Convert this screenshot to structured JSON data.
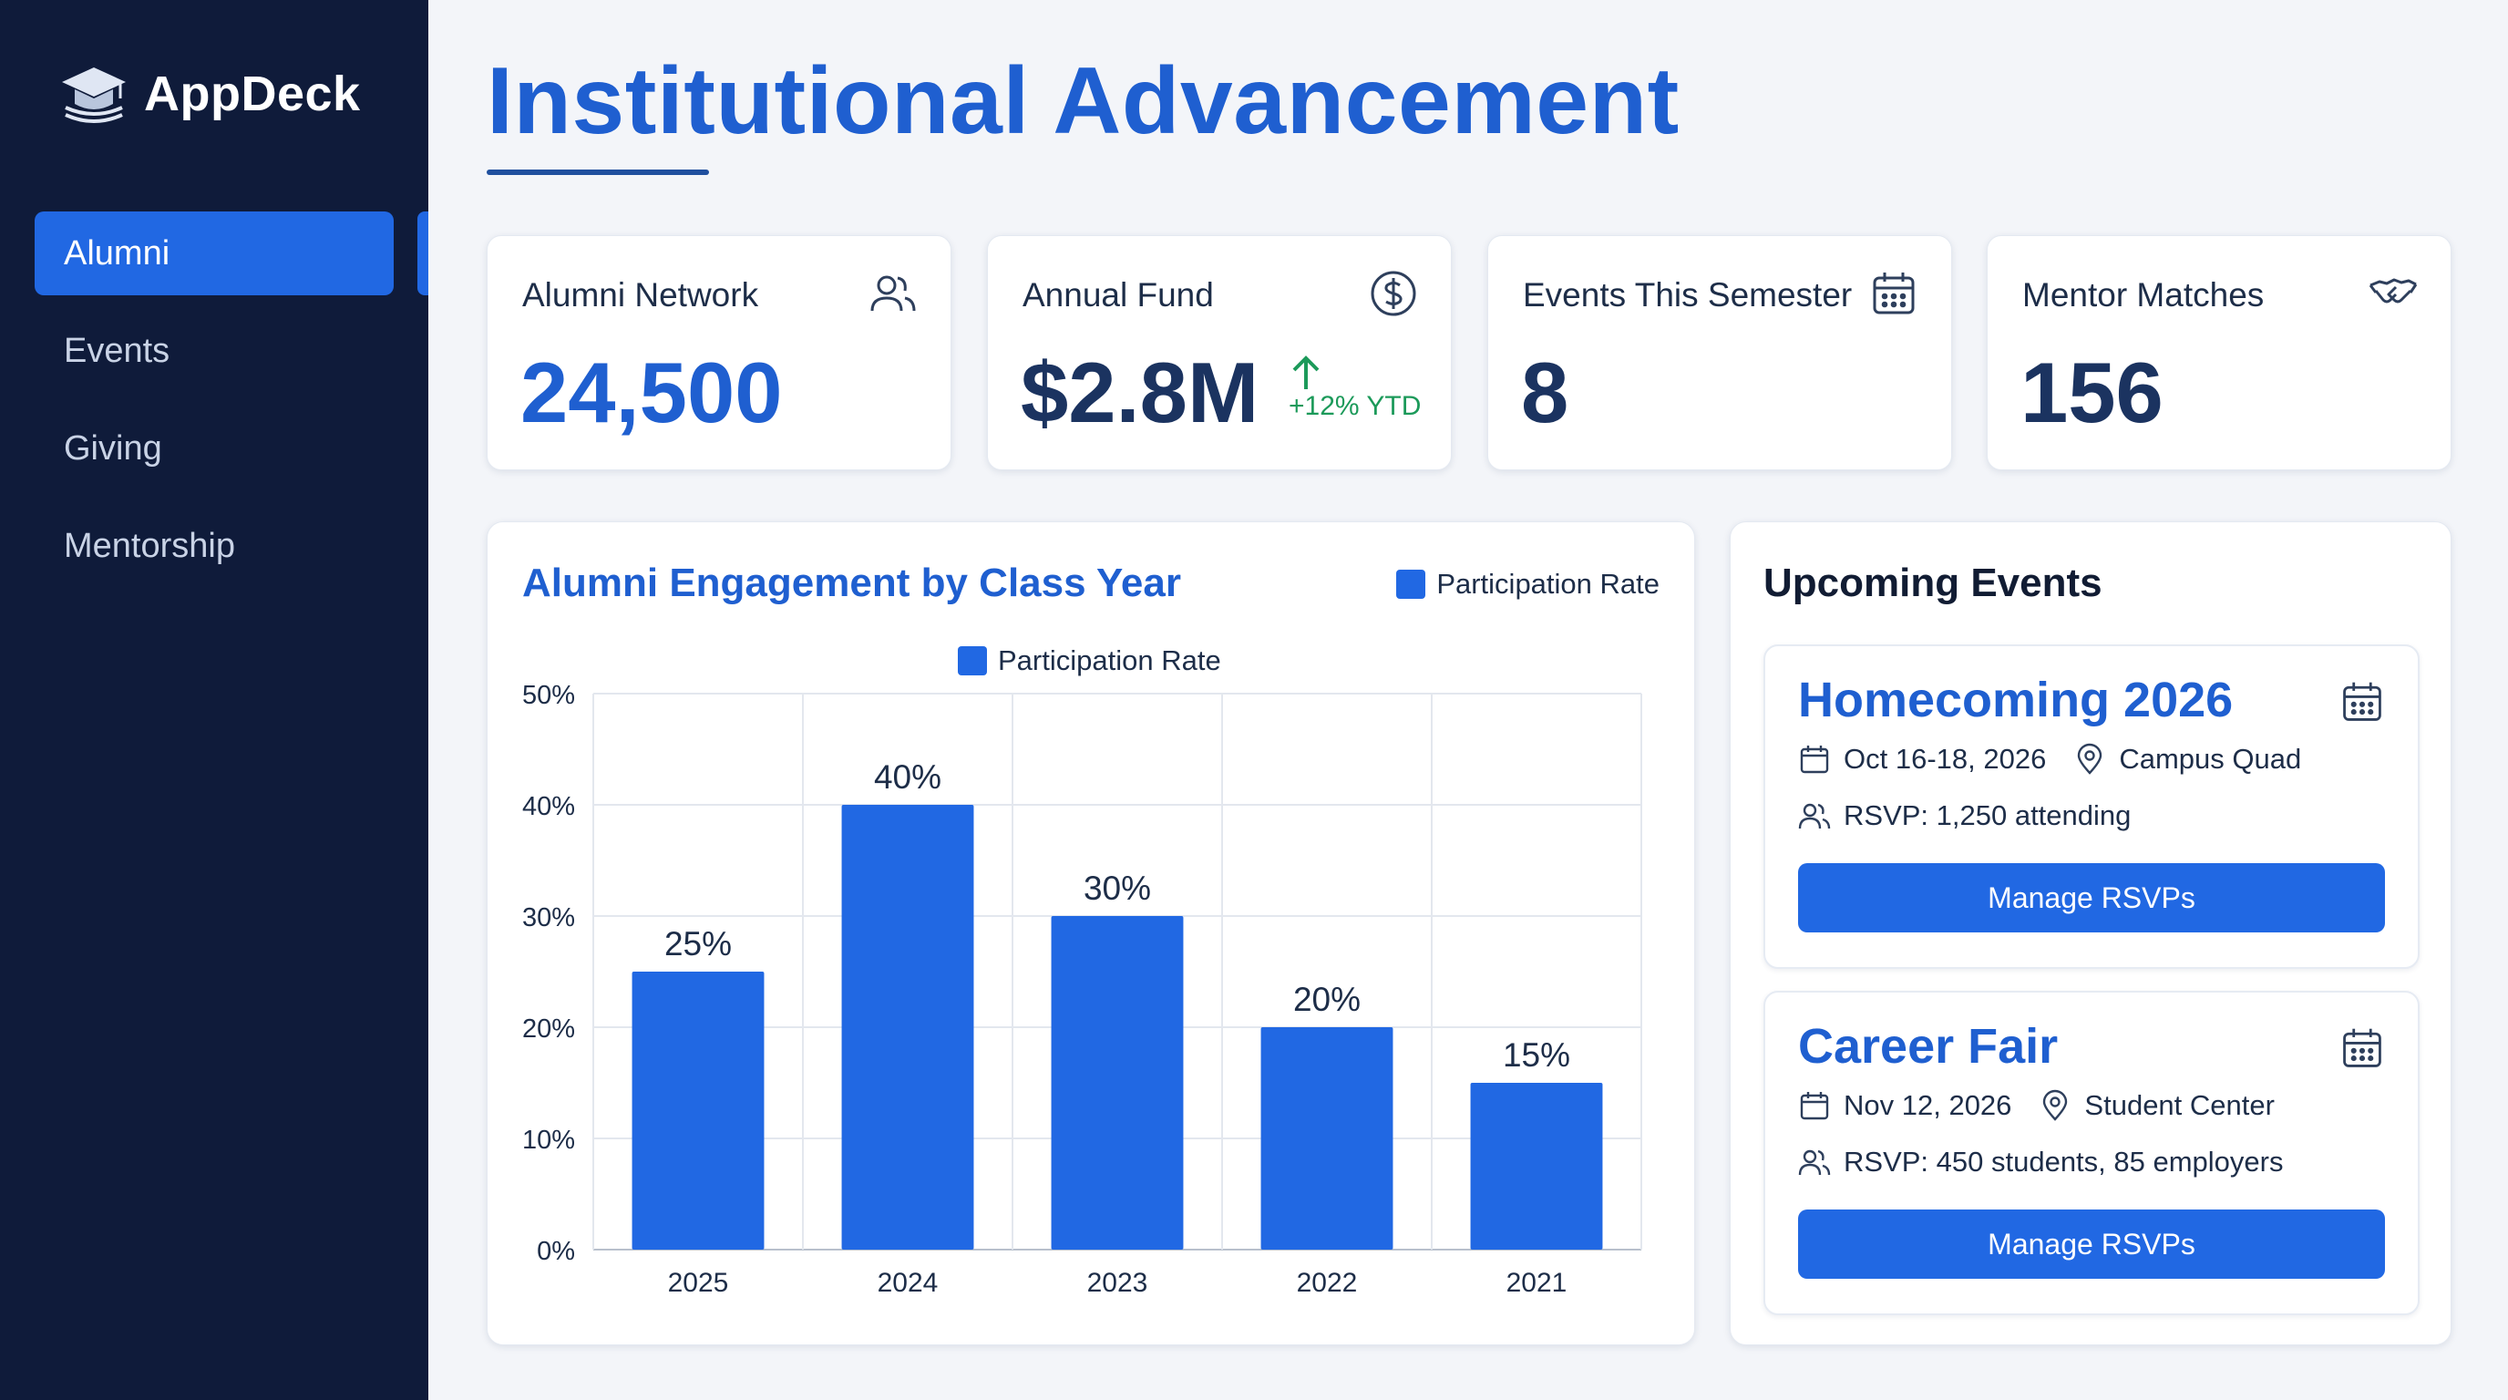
{
  "app": {
    "name": "AppDeck"
  },
  "sidebar": {
    "items": [
      {
        "label": "Alumni",
        "active": true
      },
      {
        "label": "Events",
        "active": false
      },
      {
        "label": "Giving",
        "active": false
      },
      {
        "label": "Mentorship",
        "active": false
      }
    ]
  },
  "header": {
    "title": "Institutional Advancement"
  },
  "kpis": [
    {
      "label": "Alumni Network",
      "value": "24,500",
      "icon": "users-icon"
    },
    {
      "label": "Annual Fund",
      "value": "$2.8M",
      "trend": "+12% YTD",
      "icon": "dollar-circle-icon"
    },
    {
      "label": "Events This Semester",
      "value": "8",
      "icon": "calendar-icon"
    },
    {
      "label": "Mentor Matches",
      "value": "156",
      "icon": "handshake-icon"
    }
  ],
  "chart": {
    "title": "Alumni Engagement by Class Year",
    "legend_label": "Participation Rate"
  },
  "chart_data": {
    "type": "bar",
    "title": "Alumni Engagement by Class Year",
    "categories": [
      "2025",
      "2024",
      "2023",
      "2022",
      "2021"
    ],
    "series": [
      {
        "name": "Participation Rate",
        "values": [
          25,
          40,
          30,
          20,
          15
        ]
      }
    ],
    "data_labels": [
      "25%",
      "40%",
      "30%",
      "20%",
      "15%"
    ],
    "y_ticks": [
      "0%",
      "10%",
      "20%",
      "30%",
      "40%",
      "50%"
    ],
    "ylim": [
      0,
      50
    ],
    "grid": true,
    "legend_position": "top-right",
    "color": "#2168e3"
  },
  "events": {
    "title": "Upcoming Events",
    "items": [
      {
        "name": "Homecoming 2026",
        "date": "Oct 16-18, 2026",
        "location": "Campus Quad",
        "rsvp": "RSVP: 1,250 attending",
        "button": "Manage RSVPs"
      },
      {
        "name": "Career Fair",
        "date": "Nov 12, 2026",
        "location": "Student Center",
        "rsvp": "RSVP: 450 students, 85 employers",
        "button": "Manage RSVPs"
      }
    ]
  },
  "colors": {
    "accent": "#2168e3",
    "sidebar": "#0f1b3a",
    "positive": "#1c9a5a"
  }
}
